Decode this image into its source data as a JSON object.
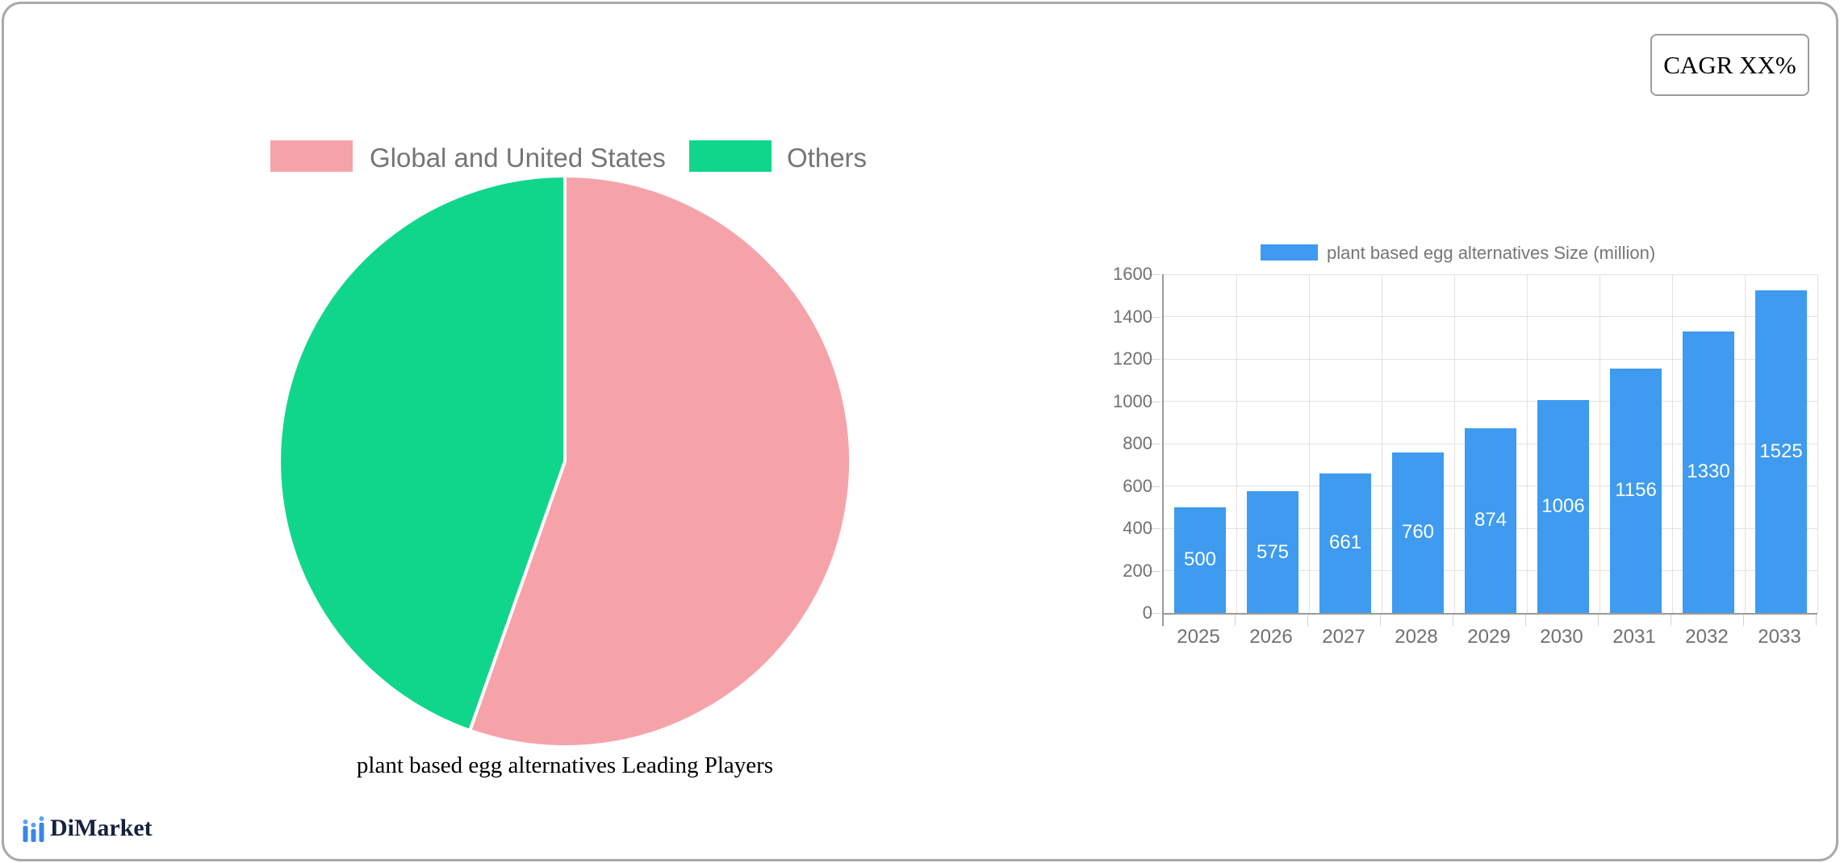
{
  "cagr_box": {
    "label": "CAGR XX%"
  },
  "brand": {
    "name": "DiMarket"
  },
  "colors": {
    "pie_slice_1": "#F5A3A9",
    "pie_slice_2": "#10D68C",
    "bar_fill": "#3E9BEF",
    "card_border": "#A9A9A9"
  },
  "chart_data": [
    {
      "type": "pie",
      "title": "plant based egg alternatives Leading Players",
      "labels": [
        "Global and United States",
        "Others"
      ],
      "values": [
        55.4,
        44.6
      ],
      "colors": [
        "#F5A3A9",
        "#10D68C"
      ],
      "legend_position": "top",
      "start_angle_deg": -90,
      "direction": "clockwise"
    },
    {
      "type": "bar",
      "legend": "plant based egg alternatives Size (million)",
      "categories": [
        "2025",
        "2026",
        "2027",
        "2028",
        "2029",
        "2030",
        "2031",
        "2032",
        "2033"
      ],
      "values": [
        500,
        575,
        661,
        760,
        874,
        1006,
        1156,
        1330,
        1525
      ],
      "bar_color": "#3E9BEF",
      "ylim": [
        0,
        1600
      ],
      "ytick_step": 200,
      "grid": true,
      "value_labels": "white, centered inside bars"
    }
  ]
}
